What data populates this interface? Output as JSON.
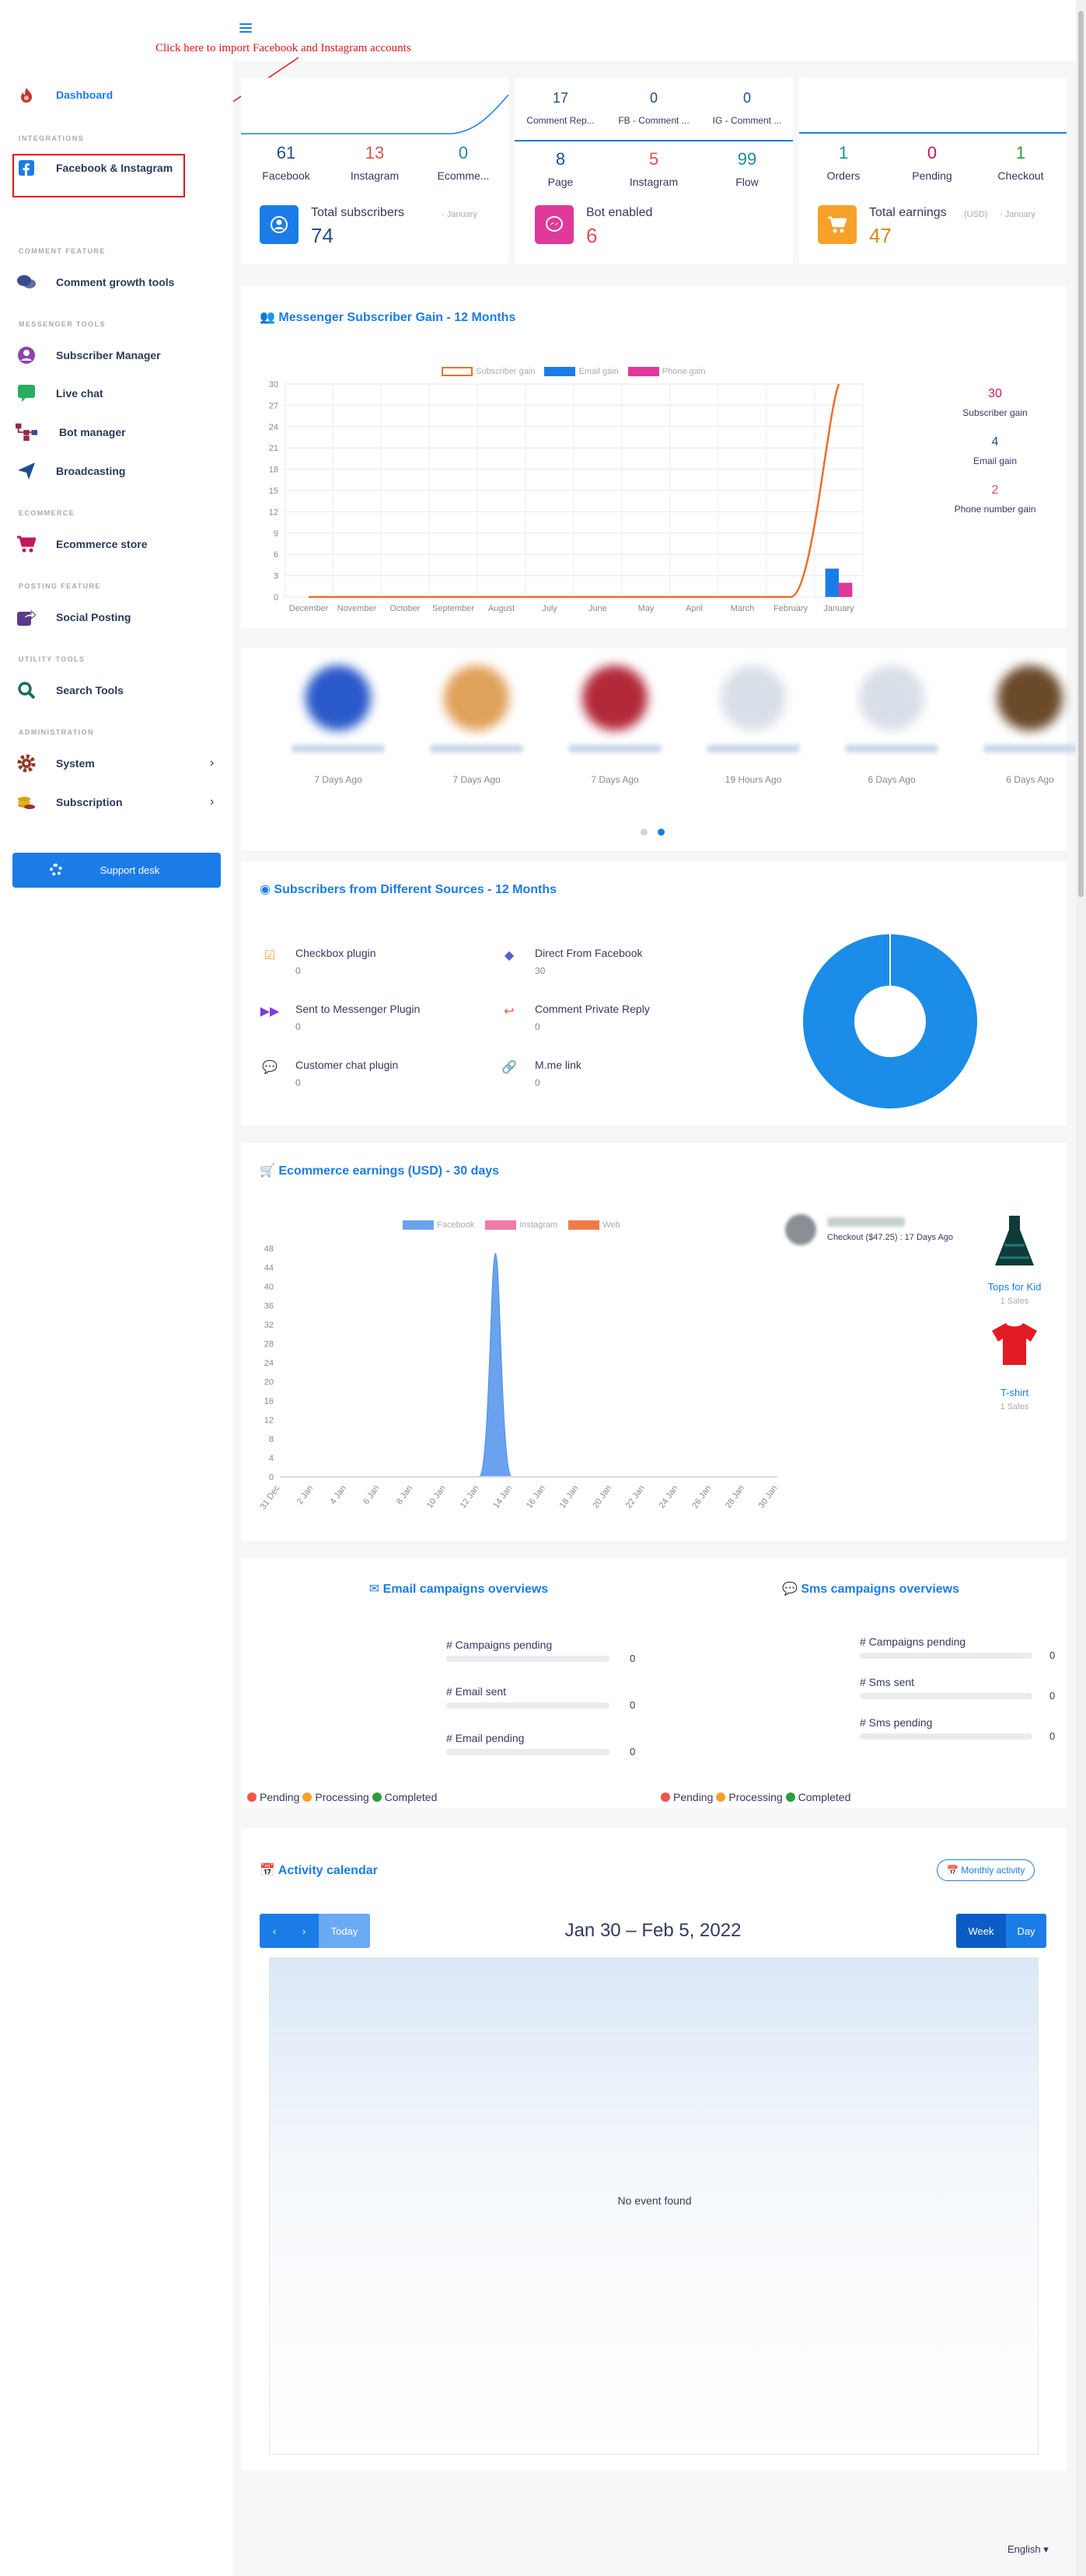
{
  "annotation": "Click here to import Facebook and Instagram accounts",
  "sidebar": {
    "dashboard": "Dashboard",
    "sec_integrations": "Integrations",
    "facebook_instagram": "Facebook & Instagram",
    "sec_comment": "Comment Feature",
    "comment_growth": "Comment growth tools",
    "sec_messenger": "Messenger Tools",
    "subscriber_manager": "Subscriber Manager",
    "live_chat": "Live chat",
    "bot_manager": "Bot manager",
    "broadcasting": "Broadcasting",
    "sec_ecommerce": "Ecommerce",
    "ecommerce_store": "Ecommerce store",
    "sec_posting": "Posting Feature",
    "social_posting": "Social Posting",
    "sec_utility": "Utility Tools",
    "search_tools": "Search Tools",
    "sec_admin": "Administration",
    "system": "System",
    "subscription": "Subscription",
    "support_desk": "Support desk"
  },
  "card1": {
    "stats": [
      {
        "value": "61",
        "label": "Facebook",
        "color": "#1f4e8c"
      },
      {
        "value": "13",
        "label": "Instagram",
        "color": "#d9534f"
      },
      {
        "value": "0",
        "label": "Ecomme...",
        "color": "#1b8ca0"
      }
    ],
    "total_label": "Total subscribers",
    "period": "- January",
    "total_value": "74"
  },
  "card2": {
    "top_stats": [
      {
        "value": "17",
        "label": "Comment Rep..."
      },
      {
        "value": "0",
        "label": "FB - Comment ..."
      },
      {
        "value": "0",
        "label": "IG - Comment ..."
      }
    ],
    "stats": [
      {
        "value": "8",
        "label": "Page",
        "color": "#1f4e8c"
      },
      {
        "value": "5",
        "label": "Instagram",
        "color": "#d9534f"
      },
      {
        "value": "99",
        "label": "Flow",
        "color": "#1b8ca0"
      }
    ],
    "total_label": "Bot enabled",
    "total_value": "6"
  },
  "card3": {
    "stats": [
      {
        "value": "1",
        "label": "Orders",
        "color": "#1b8ca0"
      },
      {
        "value": "0",
        "label": "Pending",
        "color": "#c2185b"
      },
      {
        "value": "1",
        "label": "Checkout",
        "color": "#2e9c3a"
      }
    ],
    "total_label": "Total earnings",
    "currency": "(USD)",
    "period": "- January",
    "total_value": "47"
  },
  "subscriber_gain": {
    "title": "Messenger Subscriber Gain - 12 Months",
    "legend": [
      "Subscriber gain",
      "Email gain",
      "Phone gain"
    ],
    "side": [
      {
        "value": "30",
        "label": "Subscriber gain",
        "color": "#c2185b"
      },
      {
        "value": "4",
        "label": "Email gain",
        "color": "#1f4e8c"
      },
      {
        "value": "2",
        "label": "Phone number gain",
        "color": "#d9534f"
      }
    ],
    "yticks": [
      "30",
      "27",
      "24",
      "21",
      "18",
      "15",
      "12",
      "9",
      "6",
      "3",
      "0"
    ]
  },
  "chart_data": [
    {
      "type": "line",
      "title": "Messenger Subscriber Gain - 12 Months",
      "categories": [
        "December",
        "November",
        "October",
        "September",
        "August",
        "July",
        "June",
        "May",
        "April",
        "March",
        "February",
        "January"
      ],
      "series": [
        {
          "name": "Subscriber gain",
          "type": "line",
          "values": [
            0,
            0,
            0,
            0,
            0,
            0,
            0,
            0,
            0,
            0,
            0,
            30
          ],
          "color": "#f06e2a"
        },
        {
          "name": "Email gain",
          "type": "bar",
          "values": [
            0,
            0,
            0,
            0,
            0,
            0,
            0,
            0,
            0,
            0,
            0,
            4
          ],
          "color": "#1b7ce8"
        },
        {
          "name": "Phone gain",
          "type": "bar",
          "values": [
            0,
            0,
            0,
            0,
            0,
            0,
            0,
            0,
            0,
            0,
            0,
            2
          ],
          "color": "#e0399b"
        }
      ],
      "ylim": [
        0,
        30
      ],
      "grid": true,
      "legend": "top"
    },
    {
      "type": "pie",
      "title": "Subscribers from Different Sources - 12 Months",
      "categories": [
        "Checkbox plugin",
        "Direct From Facebook",
        "Sent to Messenger Plugin",
        "Comment Private Reply",
        "Customer chat plugin",
        "M.me link"
      ],
      "values": [
        0,
        30,
        0,
        0,
        0,
        0
      ]
    },
    {
      "type": "area",
      "title": "Ecommerce earnings (USD) - 30 days",
      "x": [
        "31 Dec",
        "1 Jan",
        "2 Jan",
        "3 Jan",
        "4 Jan",
        "5 Jan",
        "6 Jan",
        "7 Jan",
        "8 Jan",
        "9 Jan",
        "10 Jan",
        "11 Jan",
        "12 Jan",
        "13 Jan",
        "14 Jan",
        "15 Jan",
        "16 Jan",
        "17 Jan",
        "18 Jan",
        "19 Jan",
        "20 Jan",
        "21 Jan",
        "22 Jan",
        "23 Jan",
        "24 Jan",
        "25 Jan",
        "26 Jan",
        "27 Jan",
        "28 Jan",
        "29 Jan",
        "30 Jan"
      ],
      "xticks": [
        "31 Dec",
        "2 Jan",
        "4 Jan",
        "6 Jan",
        "8 Jan",
        "10 Jan",
        "12 Jan",
        "14 Jan",
        "16 Jan",
        "18 Jan",
        "20 Jan",
        "22 Jan",
        "24 Jan",
        "26 Jan",
        "28 Jan",
        "30 Jan"
      ],
      "series": [
        {
          "name": "Facebook",
          "values": [
            0,
            0,
            0,
            0,
            0,
            0,
            0,
            0,
            0,
            0,
            0,
            0,
            0,
            47,
            0,
            0,
            0,
            0,
            0,
            0,
            0,
            0,
            0,
            0,
            0,
            0,
            0,
            0,
            0,
            0,
            0
          ],
          "color": "#6aa2ee"
        },
        {
          "name": "Instagram",
          "values": [
            0,
            0,
            0,
            0,
            0,
            0,
            0,
            0,
            0,
            0,
            0,
            0,
            0,
            0,
            0,
            0,
            0,
            0,
            0,
            0,
            0,
            0,
            0,
            0,
            0,
            0,
            0,
            0,
            0,
            0,
            0
          ],
          "color": "#f07aa8"
        },
        {
          "name": "Web",
          "values": [
            0,
            0,
            0,
            0,
            0,
            0,
            0,
            0,
            0,
            0,
            0,
            0,
            0,
            0,
            0,
            0,
            0,
            0,
            0,
            0,
            0,
            0,
            0,
            0,
            0,
            0,
            0,
            0,
            0,
            0,
            0
          ],
          "color": "#f07a4a"
        }
      ],
      "yticks": [
        "48",
        "44",
        "40",
        "36",
        "32",
        "28",
        "24",
        "20",
        "16",
        "12",
        "8",
        "4",
        "0"
      ],
      "ylim": [
        0,
        48
      ],
      "legend": "top"
    }
  ],
  "recent": {
    "times": [
      "7 Days Ago",
      "7 Days Ago",
      "7 Days Ago",
      "19 Hours Ago",
      "6 Days Ago",
      "6 Days Ago"
    ]
  },
  "sources": {
    "title": "Subscribers from Different Sources - 12 Months",
    "items": [
      {
        "label": "Checkbox plugin",
        "value": "0"
      },
      {
        "label": "Direct From Facebook",
        "value": "30"
      },
      {
        "label": "Sent to Messenger Plugin",
        "value": "0"
      },
      {
        "label": "Comment Private Reply",
        "value": "0"
      },
      {
        "label": "Customer chat plugin",
        "value": "0"
      },
      {
        "label": "M.me link",
        "value": "0"
      }
    ]
  },
  "ecommerce": {
    "title": "Ecommerce earnings (USD) - 30 days",
    "checkout": "Checkout ($47.25) : 17 Days Ago",
    "products": [
      {
        "name": "Tops for Kid",
        "sales": "1 Sales"
      },
      {
        "name": "T-shirt",
        "sales": "1 Sales"
      }
    ]
  },
  "email_campaigns": {
    "title": "Email campaigns overviews",
    "rows": [
      {
        "label": "# Campaigns pending",
        "value": "0"
      },
      {
        "label": "# Email sent",
        "value": "0"
      },
      {
        "label": "# Email pending",
        "value": "0"
      }
    ]
  },
  "sms_campaigns": {
    "title": "Sms campaigns overviews",
    "rows": [
      {
        "label": "# Campaigns pending",
        "value": "0"
      },
      {
        "label": "# Sms sent",
        "value": "0"
      },
      {
        "label": "# Sms pending",
        "value": "0"
      }
    ]
  },
  "status_legend": {
    "pending": "Pending",
    "processing": "Processing",
    "completed": "Completed"
  },
  "calendar": {
    "title": "Activity calendar",
    "monthly_btn": "Monthly activity",
    "today": "Today",
    "range": "Jan 30 – Feb 5, 2022",
    "week": "Week",
    "day": "Day",
    "empty": "No event found"
  },
  "footer": {
    "language": "English"
  }
}
